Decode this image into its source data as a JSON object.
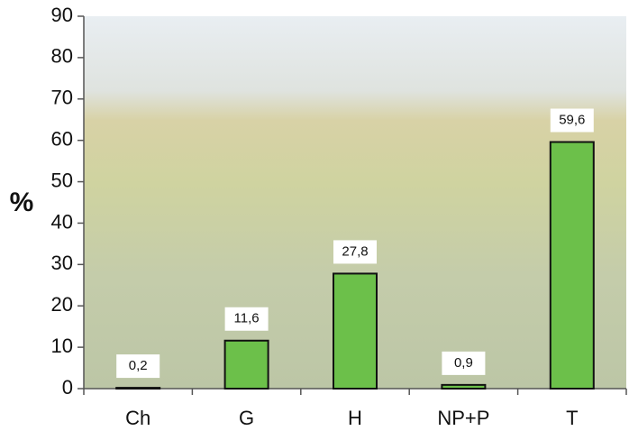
{
  "chart_data": {
    "type": "bar",
    "y_label": "%",
    "categories": [
      "Ch",
      "G",
      "H",
      "NP+P",
      "T"
    ],
    "values": [
      0.2,
      11.6,
      27.8,
      0.9,
      59.6
    ],
    "value_labels": [
      "0,2",
      "11,6",
      "27,8",
      "0,9",
      "59,6"
    ],
    "color": "#6cc04a",
    "ylim": [
      0,
      90
    ],
    "yticks": [
      0,
      10,
      20,
      30,
      40,
      50,
      60,
      70,
      80,
      90
    ]
  }
}
